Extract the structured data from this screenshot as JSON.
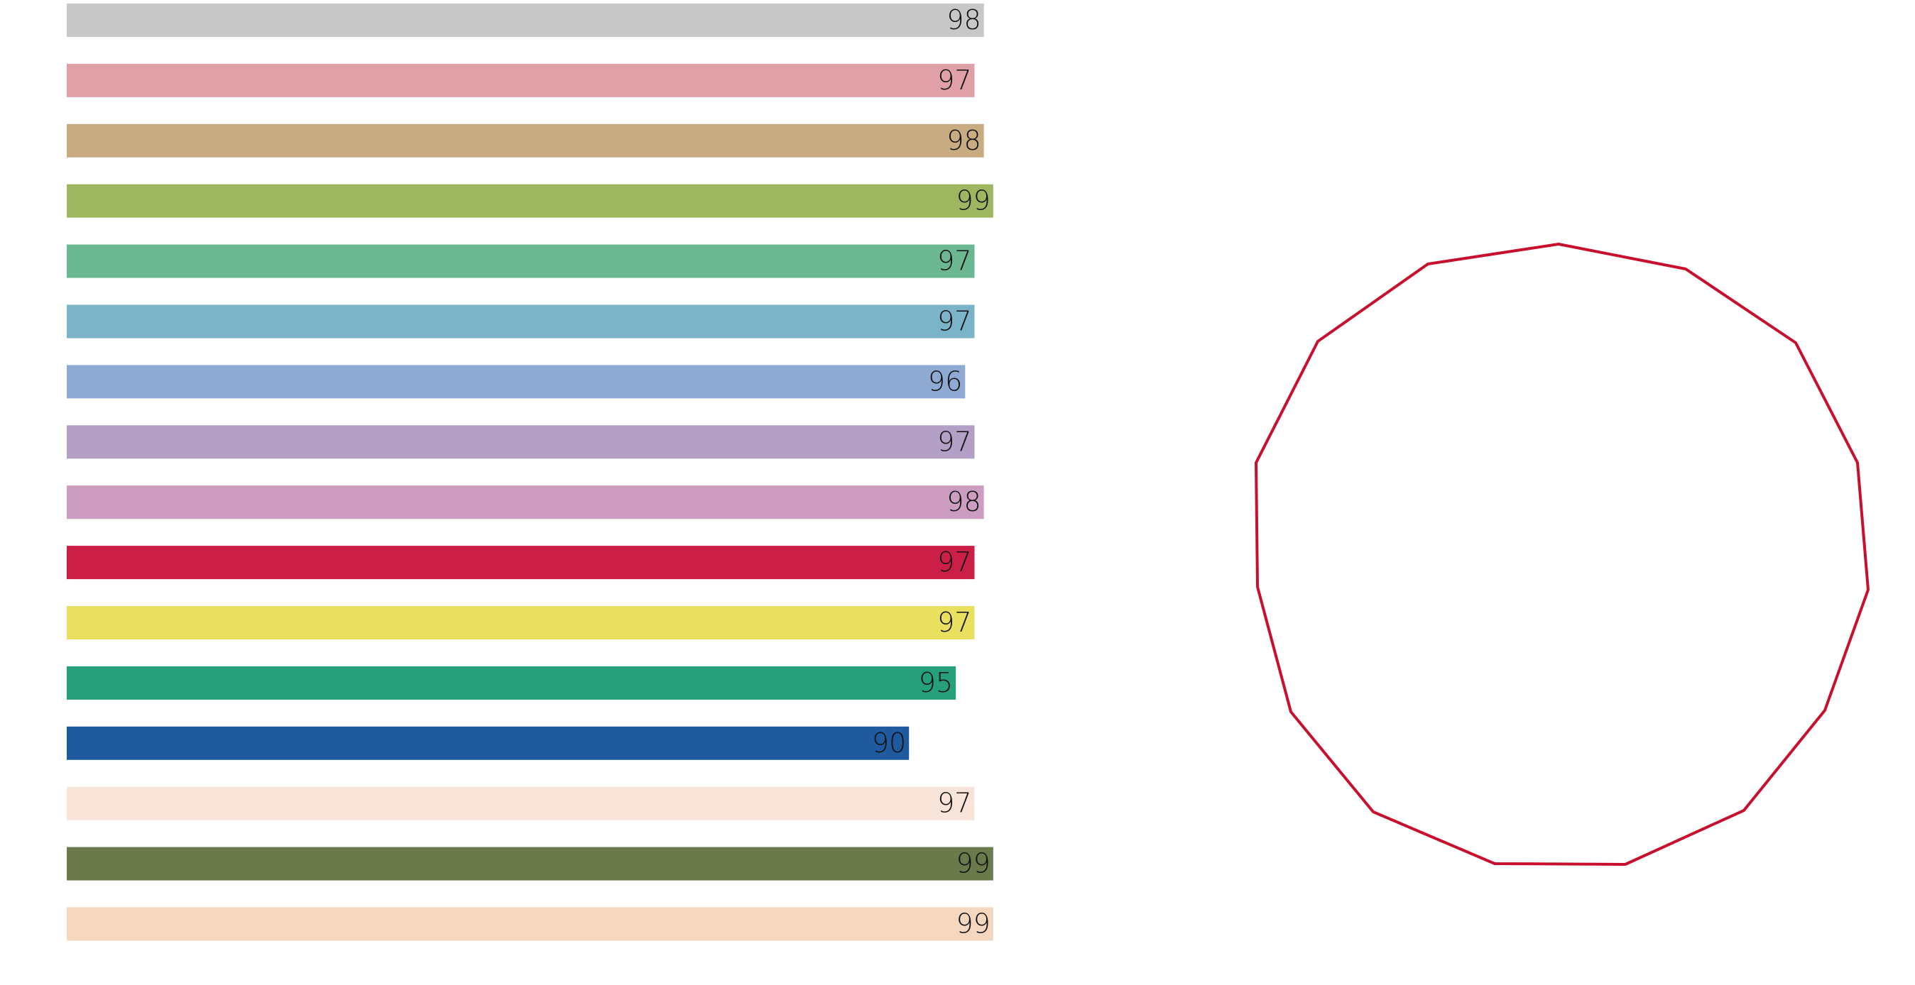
{
  "chart_data": {
    "type": "hbar",
    "values": [
      98,
      97,
      98,
      99,
      97,
      97,
      96,
      97,
      98,
      97,
      97,
      95,
      90,
      97,
      99,
      99
    ],
    "colors": [
      "#c6c7c6",
      "#e0a0a7",
      "#c8ab80",
      "#9fb661",
      "#6bb792",
      "#7bb3c9",
      "#8eaad3",
      "#b49fc6",
      "#cd9dc1",
      "#cc1f47",
      "#e8e05e",
      "#25a07b",
      "#1e5a9d",
      "#f9e4da",
      "#6a7a4b",
      "#f5d7c0"
    ]
  }
}
